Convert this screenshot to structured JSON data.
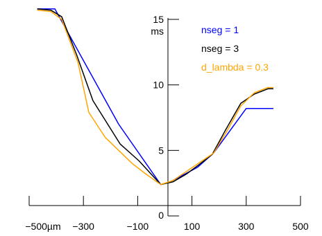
{
  "chart_data": {
    "type": "line",
    "title": "",
    "xlabel": "",
    "ylabel": "",
    "x_unit_label": "µm",
    "y_unit_label": "ms",
    "xlim": [
      -510,
      500
    ],
    "ylim": [
      0,
      15
    ],
    "x_ticks": [
      {
        "value": -500,
        "label": "−500µm"
      },
      {
        "value": -300,
        "label": "−300"
      },
      {
        "value": -100,
        "label": "−100"
      },
      {
        "value": 100,
        "label": "100"
      },
      {
        "value": 300,
        "label": "300"
      },
      {
        "value": 500,
        "label": "500"
      }
    ],
    "y_ticks": [
      {
        "value": 0,
        "label": "0"
      },
      {
        "value": 5,
        "label": "5"
      },
      {
        "value": 10,
        "label": "10"
      },
      {
        "value": 15,
        "label": "15"
      }
    ],
    "y_ticks_minor": [
      0,
      5,
      10,
      15
    ],
    "x_ticks_minor": [
      -500,
      -300,
      -100,
      100,
      300,
      500
    ],
    "grid": false,
    "legend_placement": "top-right",
    "series": [
      {
        "name": "nseg = 1",
        "color": "#0000ff",
        "x": [
          -470,
          -405,
          -170,
          -15,
          20,
          120,
          180,
          300,
          400
        ],
        "y": [
          15.8,
          15.8,
          7.0,
          2.4,
          2.6,
          3.7,
          4.8,
          8.2,
          8.2
        ]
      },
      {
        "name": "nseg = 3",
        "color": "#000000",
        "x": [
          -470,
          -420,
          -380,
          -325,
          -265,
          -165,
          -95,
          -15,
          30,
          80,
          125,
          175,
          225,
          280,
          330,
          380,
          400
        ],
        "y": [
          15.8,
          15.7,
          15.2,
          12.3,
          8.8,
          5.5,
          4.2,
          2.4,
          2.6,
          3.2,
          3.9,
          4.7,
          6.6,
          8.6,
          9.3,
          9.7,
          9.7
        ]
      },
      {
        "name": "d_lambda = 0.3",
        "color": "#ffa500",
        "x": [
          -470,
          -420,
          -380,
          -320,
          -280,
          -220,
          -170,
          -120,
          -70,
          -15,
          30,
          80,
          130,
          180,
          230,
          280,
          330,
          380,
          400
        ],
        "y": [
          15.7,
          15.6,
          15.0,
          11.7,
          7.9,
          6.0,
          5.0,
          4.0,
          3.2,
          2.4,
          2.7,
          3.4,
          4.1,
          4.8,
          6.5,
          8.4,
          9.4,
          9.8,
          9.8
        ]
      }
    ]
  }
}
